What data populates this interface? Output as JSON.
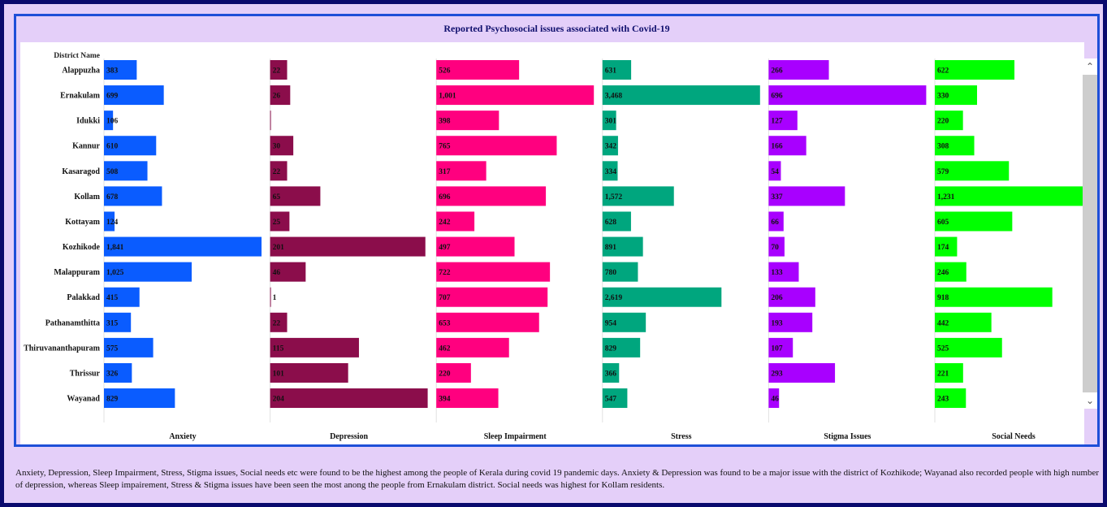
{
  "page": {
    "description": "Anxiety, Depression, Sleep Impairment, Stress, Stigma issues, Social needs etc were found to be the highest among the people of Kerala during covid 19 pandemic days. Anxiety & Depression was found to be a major issue with the district of Kozhikode; Wayanad also recorded people with high number of depression, whereas Sleep impairement, Stress & Stigma issues have been seen the most anong the people from Ernakulam district. Social needs was highest for Kollam residents."
  },
  "scrollbar": {
    "up_glyph": "⌃",
    "down_glyph": "⌄"
  },
  "chart_data": {
    "type": "bar",
    "title": "Reported Psychosocial issues associated with Covid-19",
    "row_header": "District Name",
    "categories": [
      "Alappuzha",
      "Ernakulam",
      "Idukki",
      "Kannur",
      "Kasaragod",
      "Kollam",
      "Kottayam",
      "Kozhikode",
      "Malappuram",
      "Palakkad",
      "Pathanamthitta",
      "Thiruvananthapuram",
      "Thrissur",
      "Wayanad"
    ],
    "series": [
      {
        "name": "Anxiety",
        "color": "#0a5cff",
        "values": [
          383,
          699,
          106,
          610,
          508,
          678,
          124,
          1841,
          1025,
          415,
          315,
          575,
          326,
          829
        ],
        "labels": [
          "383",
          "699",
          "106",
          "610",
          "508",
          "678",
          "124",
          "1,841",
          "1,025",
          "415",
          "315",
          "575",
          "326",
          "829"
        ]
      },
      {
        "name": "Depression",
        "color": "#8b0d4b",
        "values": [
          22,
          26,
          1,
          30,
          22,
          65,
          25,
          201,
          46,
          1,
          22,
          115,
          101,
          204
        ],
        "labels": [
          "22",
          "26",
          "",
          "30",
          "22",
          "65",
          "25",
          "201",
          "46",
          "1",
          "22",
          "115",
          "101",
          "204"
        ]
      },
      {
        "name": "Sleep Impairment",
        "color": "#ff007f",
        "values": [
          526,
          1001,
          398,
          765,
          317,
          696,
          242,
          497,
          722,
          707,
          653,
          462,
          220,
          394
        ],
        "labels": [
          "526",
          "1,001",
          "398",
          "765",
          "317",
          "696",
          "242",
          "497",
          "722",
          "707",
          "653",
          "462",
          "220",
          "394"
        ]
      },
      {
        "name": "Stress",
        "color": "#00a67e",
        "values": [
          631,
          3468,
          301,
          342,
          334,
          1572,
          628,
          891,
          780,
          2619,
          954,
          829,
          366,
          547
        ],
        "labels": [
          "631",
          "3,468",
          "301",
          "342",
          "334",
          "1,572",
          "628",
          "891",
          "780",
          "2,619",
          "954",
          "829",
          "366",
          "547"
        ]
      },
      {
        "name": "Stigma Issues",
        "color": "#a800ff",
        "values": [
          266,
          696,
          127,
          166,
          54,
          337,
          66,
          70,
          133,
          206,
          193,
          107,
          293,
          46
        ],
        "labels": [
          "266",
          "696",
          "127",
          "166",
          "54",
          "337",
          "66",
          "70",
          "133",
          "206",
          "193",
          "107",
          "293",
          "46"
        ]
      },
      {
        "name": "Social Needs",
        "color": "#00ff00",
        "values": [
          622,
          330,
          220,
          308,
          579,
          1231,
          605,
          174,
          246,
          918,
          442,
          525,
          221,
          243
        ],
        "labels": [
          "622",
          "330",
          "220",
          "308",
          "579",
          "1,231",
          "605",
          "174",
          "246",
          "918",
          "442",
          "525",
          "221",
          "243"
        ]
      }
    ]
  }
}
